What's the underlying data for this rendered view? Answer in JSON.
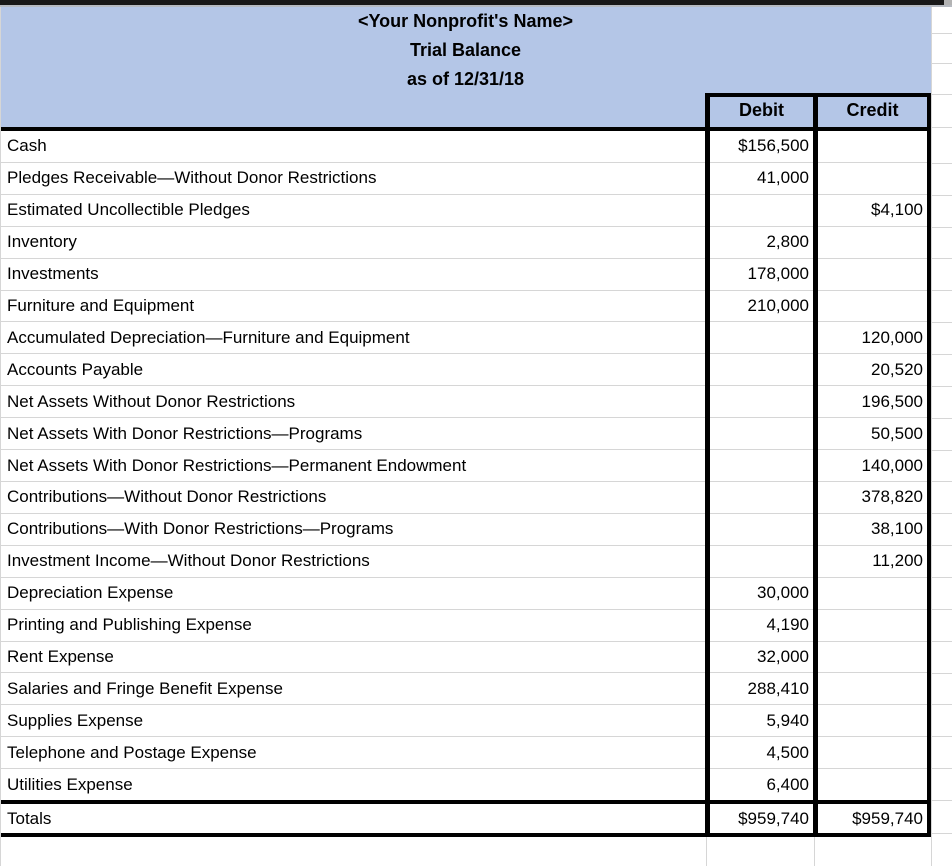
{
  "sheet": {
    "title_lines": [
      "<Your Nonprofit's Name>",
      "Trial Balance",
      "as of 12/31/18"
    ],
    "columns": {
      "debit": "Debit",
      "credit": "Credit"
    },
    "rows": [
      {
        "label": "Cash",
        "debit": "$156,500",
        "credit": ""
      },
      {
        "label": "Pledges Receivable—Without Donor Restrictions",
        "debit": "41,000",
        "credit": ""
      },
      {
        "label": "Estimated Uncollectible Pledges",
        "debit": "",
        "credit": "$4,100"
      },
      {
        "label": "Inventory",
        "debit": "2,800",
        "credit": ""
      },
      {
        "label": "Investments",
        "debit": "178,000",
        "credit": ""
      },
      {
        "label": "Furniture and Equipment",
        "debit": "210,000",
        "credit": ""
      },
      {
        "label": "Accumulated Depreciation—Furniture and Equipment",
        "debit": "",
        "credit": "120,000"
      },
      {
        "label": "Accounts Payable",
        "debit": "",
        "credit": "20,520"
      },
      {
        "label": "Net Assets Without Donor Restrictions",
        "debit": "",
        "credit": "196,500"
      },
      {
        "label": "Net Assets With Donor Restrictions—Programs",
        "debit": "",
        "credit": "50,500"
      },
      {
        "label": "Net Assets With Donor Restrictions—Permanent Endowment",
        "debit": "",
        "credit": "140,000"
      },
      {
        "label": "Contributions—Without Donor Restrictions",
        "debit": "",
        "credit": "378,820"
      },
      {
        "label": "Contributions—With Donor Restrictions—Programs",
        "debit": "",
        "credit": "38,100"
      },
      {
        "label": "Investment Income—Without Donor Restrictions",
        "debit": "",
        "credit": "11,200"
      },
      {
        "label": "Depreciation Expense",
        "debit": "30,000",
        "credit": ""
      },
      {
        "label": "Printing and Publishing Expense",
        "debit": "4,190",
        "credit": ""
      },
      {
        "label": "Rent Expense",
        "debit": "32,000",
        "credit": ""
      },
      {
        "label": "Salaries and Fringe Benefit Expense",
        "debit": "288,410",
        "credit": ""
      },
      {
        "label": "Supplies Expense",
        "debit": "5,940",
        "credit": ""
      },
      {
        "label": "Telephone and Postage Expense",
        "debit": "4,500",
        "credit": ""
      },
      {
        "label": "Utilities Expense",
        "debit": "6,400",
        "credit": ""
      }
    ],
    "totals": {
      "label": "Totals",
      "debit": "$959,740",
      "credit": "$959,740"
    },
    "colors": {
      "header_bg": "#b4c6e7",
      "grid_line": "#d6d6d6",
      "thick_border": "#000000",
      "top_bar": "#181818"
    }
  }
}
